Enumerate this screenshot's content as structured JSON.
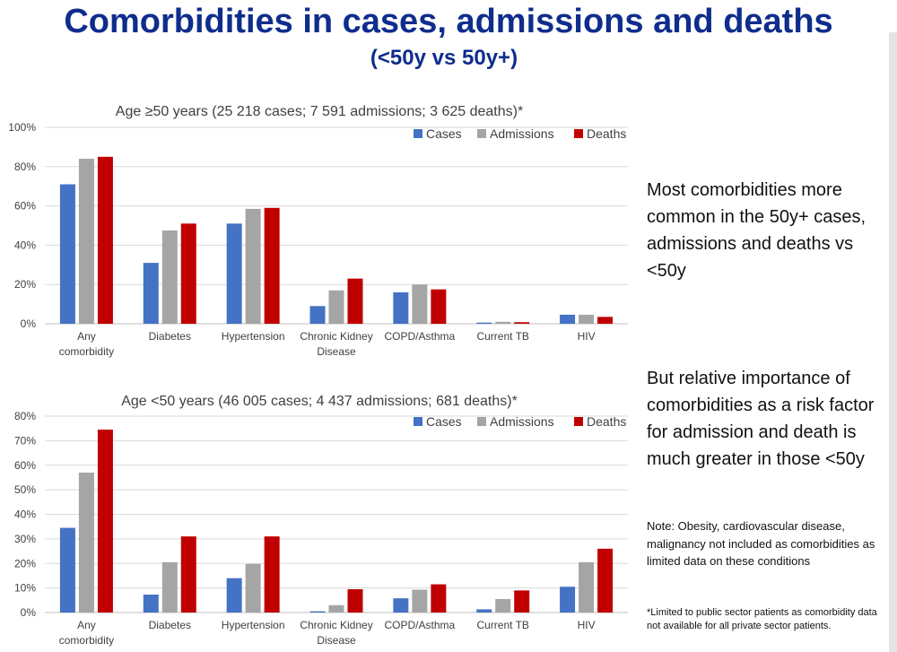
{
  "slide": {
    "title": "Comorbidities in cases, admissions and deaths",
    "subtitle": "(<50y vs 50y+)"
  },
  "side_panel": {
    "point1": "Most comorbidities more common in the 50y+ cases, admissions and deaths vs <50y",
    "point2": "But relative importance of comorbidities as a risk factor for admission and death is much greater in those <50y",
    "note": "Note: Obesity, cardiovascular disease, malignancy not included as comorbidities as limited data on these conditions",
    "footnote": "*Limited to public sector patients as comorbidity data not available for all private sector patients."
  },
  "colors": {
    "cases": "#4472c4",
    "admissions": "#a5a5a5",
    "deaths": "#c00000",
    "title": "#0f2d8c"
  },
  "chart_data": [
    {
      "type": "bar",
      "title": "Age ≥50 years (25 218 cases; 7 591 admissions; 3 625 deaths)*",
      "categories": [
        [
          "Any",
          "comorbidity"
        ],
        [
          "Diabetes"
        ],
        [
          "Hypertension"
        ],
        [
          "Chronic Kidney",
          "Disease"
        ],
        [
          "COPD/Asthma"
        ],
        [
          "Current TB"
        ],
        [
          "HIV"
        ]
      ],
      "series": [
        {
          "name": "Cases",
          "color": "#4472c4",
          "values": [
            71,
            31,
            51,
            9,
            16,
            0.6,
            4.6
          ]
        },
        {
          "name": "Admissions",
          "color": "#a5a5a5",
          "values": [
            84,
            47.5,
            58.5,
            17,
            20,
            1,
            4.6
          ]
        },
        {
          "name": "Deaths",
          "color": "#c00000",
          "values": [
            85,
            51,
            59,
            23,
            17.5,
            0.8,
            3.5
          ]
        }
      ],
      "ylim": [
        0,
        100
      ],
      "yticks": [
        "0%",
        "20%",
        "40%",
        "60%",
        "80%",
        "100%"
      ],
      "grid": true,
      "legend": "top-right"
    },
    {
      "type": "bar",
      "title": "Age <50 years (46 005 cases;  4 437 admissions; 681 deaths)*",
      "categories": [
        [
          "Any",
          "comorbidity"
        ],
        [
          "Diabetes"
        ],
        [
          "Hypertension"
        ],
        [
          "Chronic Kidney",
          "Disease"
        ],
        [
          "COPD/Asthma"
        ],
        [
          "Current TB"
        ],
        [
          "HIV"
        ]
      ],
      "series": [
        {
          "name": "Cases",
          "color": "#4472c4",
          "values": [
            34.5,
            7.3,
            14,
            0.5,
            5.8,
            1.3,
            10.5
          ]
        },
        {
          "name": "Admissions",
          "color": "#a5a5a5",
          "values": [
            57,
            20.5,
            19.8,
            3,
            9.3,
            5.5,
            20.5
          ]
        },
        {
          "name": "Deaths",
          "color": "#c00000",
          "values": [
            74.5,
            31,
            31,
            9.5,
            11.5,
            9,
            26
          ]
        }
      ],
      "ylim": [
        0,
        80
      ],
      "yticks": [
        "0%",
        "10%",
        "20%",
        "30%",
        "40%",
        "50%",
        "60%",
        "70%",
        "80%"
      ],
      "grid": true,
      "legend": "top-right"
    }
  ]
}
